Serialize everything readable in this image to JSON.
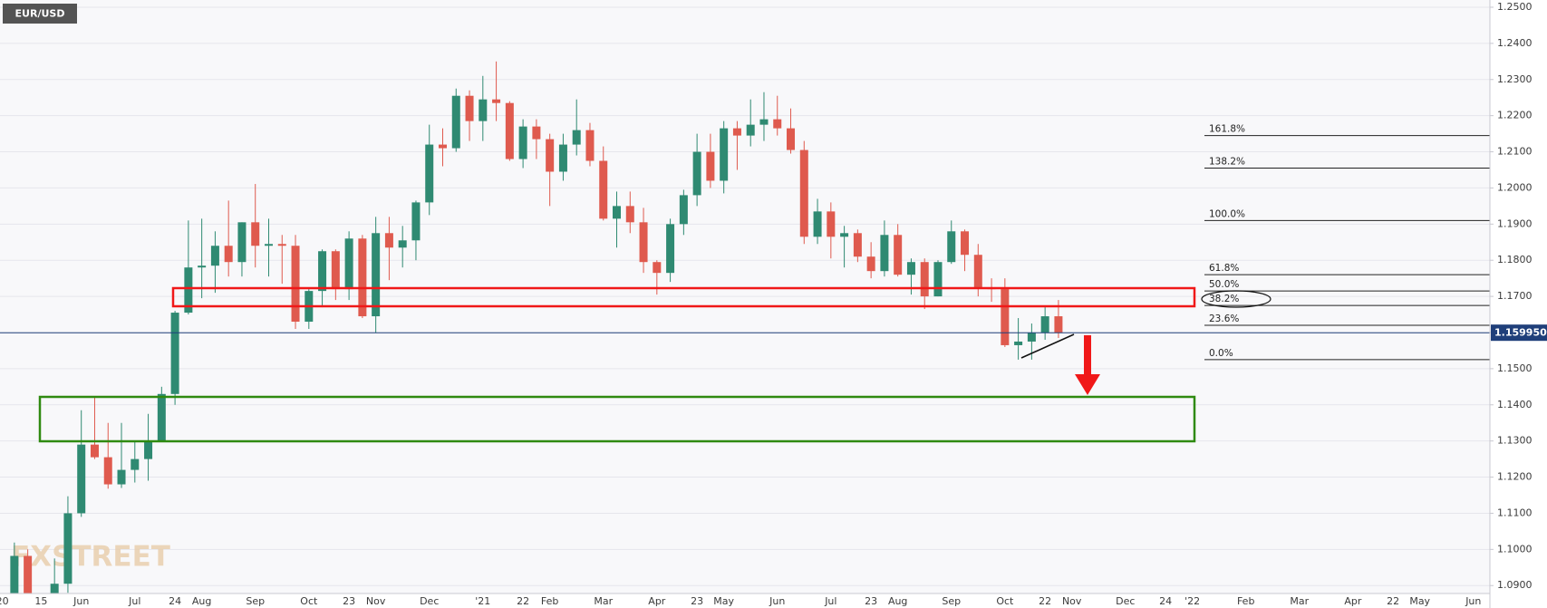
{
  "chart_data": {
    "type": "candlestick",
    "title": "EUR/USD",
    "watermark": "FXSTREET",
    "up_color": "#2f8a72",
    "down_color": "#df5a4e",
    "grid": true,
    "ylim": [
      1.0878,
      1.252
    ],
    "yticks": [
      {
        "value": 1.09,
        "label": "1.0900"
      },
      {
        "value": 1.1,
        "label": "1.1000"
      },
      {
        "value": 1.11,
        "label": "1.1100"
      },
      {
        "value": 1.12,
        "label": "1.1200"
      },
      {
        "value": 1.13,
        "label": "1.1300"
      },
      {
        "value": 1.14,
        "label": "1.1400"
      },
      {
        "value": 1.15,
        "label": "1.1500"
      },
      {
        "value": 1.16,
        "label": "1.1600"
      },
      {
        "value": 1.17,
        "label": "1.1700"
      },
      {
        "value": 1.18,
        "label": "1.1800"
      },
      {
        "value": 1.19,
        "label": "1.1900"
      },
      {
        "value": 1.2,
        "label": "1.2000"
      },
      {
        "value": 1.21,
        "label": "1.2100"
      },
      {
        "value": 1.22,
        "label": "1.2200"
      },
      {
        "value": 1.23,
        "label": "1.2300"
      },
      {
        "value": 1.24,
        "label": "1.2400"
      },
      {
        "value": 1.25,
        "label": "1.2500"
      }
    ],
    "last_price": {
      "value": 1.15995,
      "label": "1.159950"
    },
    "annotations": [
      {
        "label": "161.8%",
        "value": 1.2145
      },
      {
        "label": "138.2%",
        "value": 1.2055
      },
      {
        "label": "100.0%",
        "value": 1.191
      },
      {
        "label": "61.8%",
        "value": 1.176
      },
      {
        "label": "50.0%",
        "value": 1.1715
      },
      {
        "label": "38.2%",
        "value": 1.1675
      },
      {
        "label": "23.6%",
        "value": 1.162
      },
      {
        "label": "0.0%",
        "value": 1.1525
      }
    ],
    "categories": [
      "'20",
      null,
      null,
      "15",
      null,
      null,
      "Jun",
      null,
      null,
      null,
      "Jul",
      null,
      null,
      "24",
      null,
      "Aug",
      null,
      null,
      null,
      "Sep",
      null,
      null,
      null,
      "Oct",
      null,
      null,
      "23",
      null,
      "Nov",
      null,
      null,
      null,
      "Dec",
      null,
      null,
      null,
      "'21",
      null,
      null,
      "22",
      null,
      "Feb",
      null,
      null,
      null,
      "Mar",
      null,
      null,
      null,
      "Apr",
      null,
      null,
      "23",
      null,
      "May",
      null,
      null,
      null,
      "Jun",
      null,
      null,
      null,
      "Jul",
      null,
      null,
      "23",
      null,
      "Aug",
      null,
      null,
      null,
      "Sep",
      null,
      null,
      null,
      "Oct",
      null,
      null,
      "22",
      null,
      "Nov",
      null,
      null,
      null,
      "Dec",
      null,
      null,
      "24",
      null,
      "'22",
      null,
      null,
      null,
      "Feb",
      null,
      null,
      null,
      "Mar",
      null,
      null,
      null,
      "Apr",
      null,
      null,
      "22",
      null,
      "May",
      null,
      null,
      null,
      "Jun",
      null
    ],
    "open": [
      null,
      1.0822,
      1.0982,
      1.084,
      1.0818,
      1.0905,
      1.11,
      1.129,
      1.1255,
      1.118,
      1.122,
      1.125,
      1.13,
      1.143,
      1.1655,
      1.178,
      1.1785,
      1.184,
      1.1795,
      1.1905,
      1.184,
      1.1845,
      1.184,
      1.163,
      1.1715,
      1.1825,
      1.172,
      1.186,
      1.1645,
      1.1875,
      1.1835,
      1.1855,
      1.196,
      1.212,
      1.211,
      1.2255,
      1.2185,
      1.2245,
      1.2235,
      1.208,
      1.217,
      1.2135,
      1.2045,
      1.212,
      1.216,
      1.2075,
      1.1915,
      1.195,
      1.1905,
      1.1795,
      1.1765,
      1.19,
      1.198,
      1.21,
      1.202,
      1.2165,
      1.2145,
      1.2175,
      1.219,
      1.2165,
      1.2105,
      1.1865,
      1.1935,
      1.1865,
      1.1875,
      1.181,
      1.177,
      1.187,
      1.176,
      1.1795,
      1.17,
      1.1795,
      1.188,
      1.1815,
      1.1725,
      1.172,
      1.1565,
      1.1575,
      1.16,
      1.1645,
      null,
      null,
      null,
      null,
      null,
      null,
      null,
      null,
      null,
      null,
      null,
      null,
      null,
      null,
      null,
      null,
      null,
      null,
      null,
      null,
      null,
      null,
      null,
      null,
      null,
      null,
      null,
      null,
      null,
      null,
      null,
      null
    ],
    "high": [
      null,
      1.1019,
      1.1,
      1.0875,
      1.0975,
      1.1147,
      1.1385,
      1.1422,
      1.135,
      1.135,
      1.13,
      1.1375,
      1.145,
      1.166,
      1.191,
      1.1915,
      1.188,
      1.1965,
      1.1905,
      1.2011,
      1.1915,
      1.187,
      1.187,
      1.172,
      1.183,
      1.183,
      1.188,
      1.187,
      1.192,
      1.192,
      1.1895,
      1.1965,
      1.2175,
      1.2165,
      1.2275,
      1.227,
      1.231,
      1.235,
      1.224,
      1.219,
      1.219,
      1.215,
      1.215,
      1.2245,
      1.218,
      1.2115,
      1.199,
      1.199,
      1.1945,
      1.18,
      1.1915,
      1.1995,
      1.215,
      1.215,
      1.2185,
      1.2185,
      1.2245,
      1.2265,
      1.2255,
      1.222,
      1.213,
      1.197,
      1.196,
      1.1895,
      1.1885,
      1.185,
      1.191,
      1.19,
      1.1805,
      1.1805,
      1.18,
      1.191,
      1.1885,
      1.1845,
      1.175,
      1.175,
      1.164,
      1.1625,
      1.167,
      1.169,
      null,
      null,
      null,
      null,
      null,
      null,
      null,
      null,
      null,
      null,
      null,
      null,
      null,
      null,
      null,
      null,
      null,
      null,
      null,
      null,
      null,
      null,
      null,
      null,
      null,
      null,
      null,
      null,
      null,
      null,
      null,
      null
    ],
    "low": [
      null,
      1.081,
      1.0782,
      1.0775,
      1.08,
      1.088,
      1.109,
      1.125,
      1.1168,
      1.117,
      1.1185,
      1.119,
      1.13,
      1.14,
      1.165,
      1.1695,
      1.171,
      1.1755,
      1.1755,
      1.178,
      1.1755,
      1.1735,
      1.161,
      1.161,
      1.167,
      1.169,
      1.169,
      1.164,
      1.16,
      1.1745,
      1.178,
      1.18,
      1.1925,
      1.206,
      1.21,
      1.213,
      1.213,
      1.2185,
      1.2075,
      1.2055,
      1.208,
      1.195,
      1.202,
      1.209,
      1.206,
      1.191,
      1.1835,
      1.1875,
      1.1765,
      1.1705,
      1.174,
      1.187,
      1.195,
      1.2,
      1.1985,
      1.205,
      1.2115,
      1.213,
      1.2145,
      1.2095,
      1.1845,
      1.1845,
      1.1805,
      1.178,
      1.1795,
      1.175,
      1.1755,
      1.1755,
      1.1705,
      1.1665,
      1.17,
      1.179,
      1.177,
      1.17,
      1.1685,
      1.156,
      1.1525,
      1.1525,
      1.158,
      1.1585,
      null,
      null,
      null,
      null,
      null,
      null,
      null,
      null,
      null,
      null,
      null,
      null,
      null,
      null,
      null,
      null,
      null,
      null,
      null,
      null,
      null,
      null,
      null,
      null,
      null,
      null,
      null,
      null,
      null,
      null,
      null,
      null
    ],
    "close": [
      null,
      1.0982,
      1.084,
      1.0818,
      1.0905,
      1.11,
      1.129,
      1.1255,
      1.118,
      1.122,
      1.125,
      1.13,
      1.143,
      1.1655,
      1.178,
      1.1785,
      1.184,
      1.1795,
      1.1905,
      1.184,
      1.1845,
      1.184,
      1.163,
      1.1715,
      1.1825,
      1.172,
      1.186,
      1.1645,
      1.1875,
      1.1835,
      1.1855,
      1.196,
      1.212,
      1.211,
      1.2255,
      1.2185,
      1.2245,
      1.2235,
      1.208,
      1.217,
      1.2135,
      1.2045,
      1.212,
      1.216,
      1.2075,
      1.1915,
      1.195,
      1.1905,
      1.1795,
      1.1765,
      1.19,
      1.198,
      1.21,
      1.202,
      1.2165,
      1.2145,
      1.2175,
      1.219,
      1.2165,
      1.2105,
      1.1865,
      1.1935,
      1.1865,
      1.1875,
      1.181,
      1.177,
      1.187,
      1.176,
      1.1795,
      1.17,
      1.1795,
      1.188,
      1.1815,
      1.1725,
      1.172,
      1.1565,
      1.1575,
      1.16,
      1.1645,
      1.15995,
      null,
      null,
      null,
      null,
      null,
      null,
      null,
      null,
      null,
      null,
      null,
      null,
      null,
      null,
      null,
      null,
      null,
      null,
      null,
      null,
      null,
      null,
      null,
      null,
      null,
      null,
      null,
      null,
      null,
      null,
      null,
      null
    ]
  }
}
